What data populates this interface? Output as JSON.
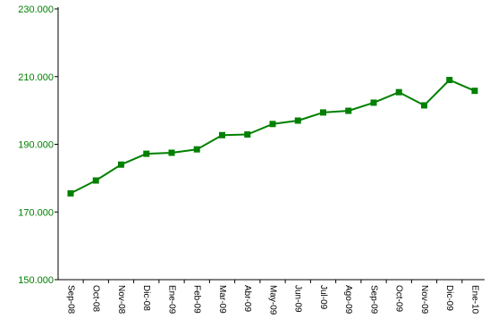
{
  "chart_data": {
    "type": "line",
    "title": "",
    "xlabel": "",
    "ylabel": "",
    "ylim": [
      150000,
      230000
    ],
    "yticks": [
      150000,
      170000,
      190000,
      210000,
      230000
    ],
    "ytick_labels": [
      "150.000",
      "170.000",
      "190.000",
      "210.000",
      "230.000"
    ],
    "categories": [
      "Sep-08",
      "Oct-08",
      "Nov-08",
      "Dic-08",
      "Ene-09",
      "Feb-09",
      "Mar-09",
      "Abr-09",
      "May-09",
      "Jun-09",
      "Jul-09",
      "Ago-09",
      "Sep-09",
      "Oct-09",
      "Nov-09",
      "Dic-09",
      "Ene-10"
    ],
    "series": [
      {
        "values": [
          175500,
          179300,
          184000,
          187200,
          187500,
          188500,
          192700,
          192900,
          196000,
          197000,
          199400,
          199900,
          202300,
          205400,
          201500,
          209000,
          205800
        ],
        "color": "#008000"
      }
    ],
    "grid": false,
    "legend": "none",
    "colors": {
      "axis": "#000000",
      "ytick_label": "#008000",
      "xtick_label": "#000000",
      "line": "#008000",
      "marker": "#008000"
    }
  }
}
